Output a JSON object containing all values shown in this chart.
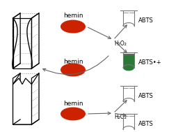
{
  "bg_color": "#ffffff",
  "hemin_color": "#cc2200",
  "tube_filled_color": "#2a7a35",
  "tube_outline_color": "#777777",
  "arrow_color": "#666666",
  "text_color": "#000000",
  "gq_line_color": "#000000",
  "gq_dot_color": "#888888",
  "hemin_label": "hemin",
  "abts_label": "ABTS",
  "abts_ox_label": "ABTS•+",
  "h2o2_label": "H₂O₂"
}
